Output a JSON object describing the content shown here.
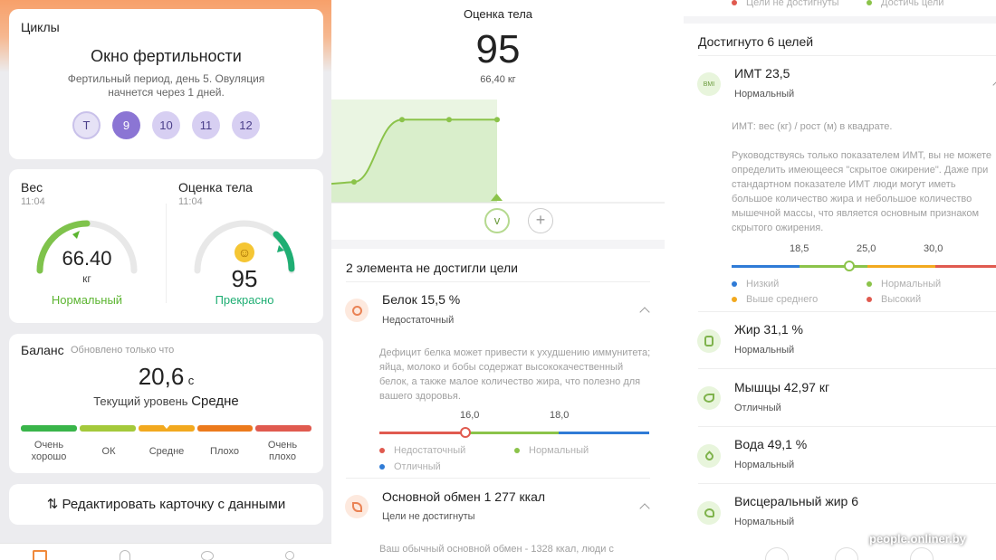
{
  "cycles": {
    "title": "Циклы",
    "heading": "Окно фертильности",
    "description": "Фертильный период, день 5. Овуляция начнется через 1 дней.",
    "days": [
      "Т",
      "9",
      "10",
      "11",
      "12"
    ]
  },
  "weight": {
    "title": "Вес",
    "time": "11:04",
    "value": "66.40",
    "unit": "кг",
    "status": "Нормальный"
  },
  "body_score": {
    "title": "Оценка тела",
    "time": "11:04",
    "value": "95",
    "status": "Прекрасно"
  },
  "balance": {
    "title": "Баланс",
    "updated": "Обновлено только что",
    "value": "20,6",
    "unit": "с",
    "level_label": "Текущий уровень",
    "level_value": "Средне",
    "scale_labels": [
      "Очень хорошо",
      "ОК",
      "Средне",
      "Плохо",
      "Очень плохо"
    ],
    "scale_colors": [
      "#39b54a",
      "#a4c93b",
      "#f2a91f",
      "#ec7a1c",
      "#e05a4f"
    ],
    "current_fraction": 0.5
  },
  "edit_card": {
    "label": "Редактировать карточку с данными"
  },
  "middle": {
    "title": "Оценка тела",
    "score": "95",
    "weight": "66,40 кг",
    "chart_points": [
      15,
      15,
      95,
      95,
      95
    ],
    "not_reached_title": "2 элемента не достигли цели",
    "protein": {
      "title": "Белок 15,5 %",
      "status": "Недостаточный",
      "text": "Дефицит белка может привести к ухудшению иммунитета; яйца, молоко и бобы содержат высококачественный белок, а также малое количество жира, что полезно для вашего здоровья.",
      "ticks": [
        "16,0",
        "18,0"
      ],
      "legend": [
        "Недостаточный",
        "Нормальный",
        "Отличный"
      ],
      "legend_colors": [
        "#e05a4f",
        "#8bc34a",
        "#2f7bd6"
      ]
    },
    "metabolism": {
      "title": "Основной обмен 1 277 ккал",
      "status": "Цели не достигнуты",
      "text": "Ваш обычный основной обмен - 1328 ккал, люди с"
    }
  },
  "right": {
    "top_legend": [
      "Цели не достигнуты",
      "Достичь цели"
    ],
    "top_legend_colors": [
      "#e05a4f",
      "#8bc34a"
    ],
    "reached_title": "Достигнуто 6 целей",
    "bmi": {
      "title": "ИМТ 23,5",
      "status": "Нормальный",
      "formula": "ИМТ: вес (кг) / рост (м) в квадрате.",
      "text": "Руководствуясь только показателем ИМТ, вы не можете определить имеющееся \"скрытое ожирение\". Даже при стандартном показателе ИМТ люди могут иметь большое количество жира и небольшое количество мышечной массы, что является основным признаком скрытого ожирения.",
      "ticks": [
        "18,5",
        "25,0",
        "30,0"
      ],
      "legend": [
        "Низкий",
        "Нормальный",
        "Выше среднего",
        "Высокий"
      ],
      "legend_colors": [
        "#2f7bd6",
        "#8bc34a",
        "#f2a91f",
        "#e05a4f"
      ]
    },
    "fat": {
      "title": "Жир 31,1 %",
      "status": "Нормальный"
    },
    "muscle": {
      "title": "Мышцы 42,97 кг",
      "status": "Отличный"
    },
    "water": {
      "title": "Вода 49,1 %",
      "status": "Нормальный"
    },
    "visceral": {
      "title": "Висцеральный жир 6",
      "status": "Нормальный"
    }
  },
  "watermark": "people.onliner.by"
}
